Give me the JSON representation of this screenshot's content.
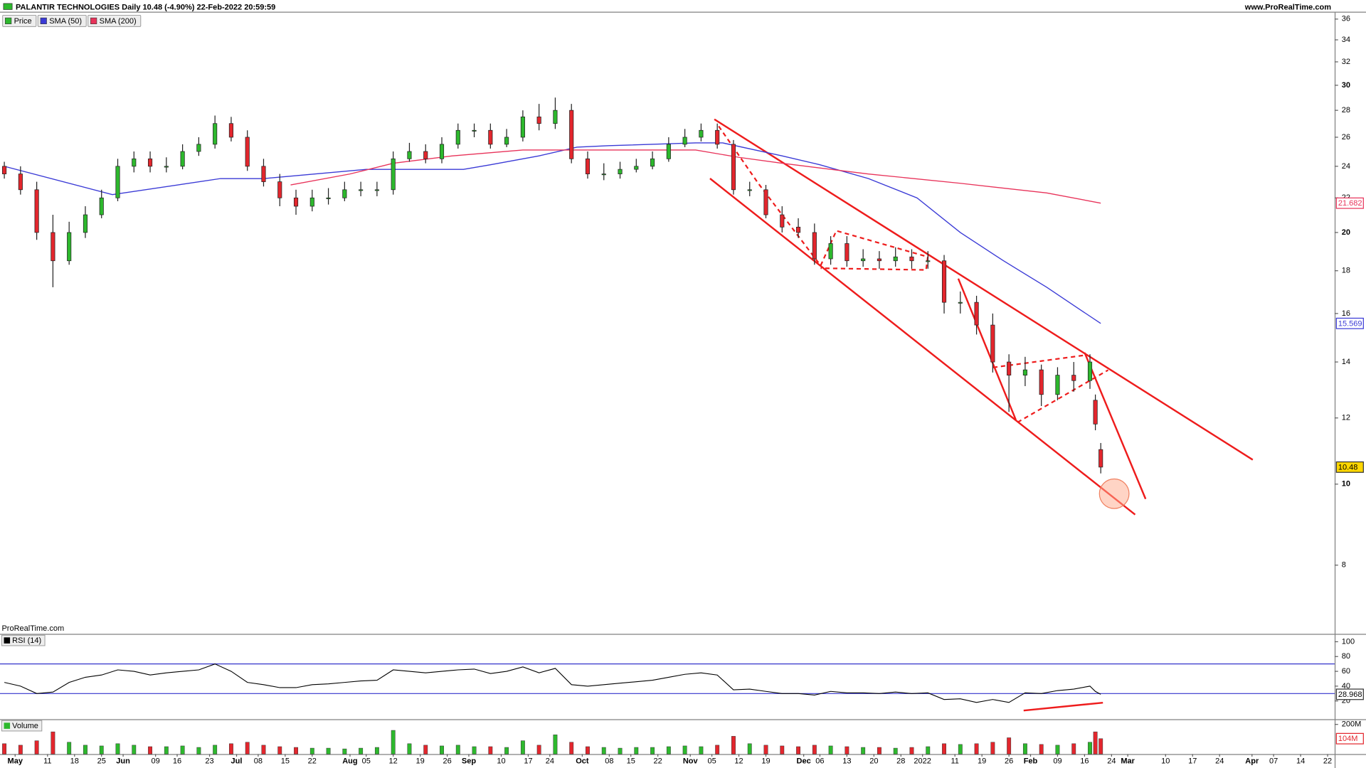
{
  "header": {
    "site": "www.ProRealTime.com",
    "watermark": "ProRealTime.com"
  },
  "chart_data": [
    {
      "type": "candlestick",
      "title": "PALANTIR TECHNOLOGIES Daily 10.48 (-4.90%) 22-Feb-2022 20:59:59",
      "name": "Price",
      "up_color": "#2db82d",
      "down_color": "#e3262d",
      "log": true,
      "grid": false,
      "x": [
        0,
        3,
        6,
        9,
        12,
        15,
        18,
        21,
        24,
        27,
        30,
        33,
        36,
        39,
        42,
        45,
        48,
        51,
        54,
        57,
        60,
        63,
        66,
        69,
        72,
        75,
        78,
        81,
        84,
        87,
        90,
        93,
        96,
        99,
        102,
        105,
        108,
        111,
        114,
        117,
        120,
        123,
        126,
        129,
        132,
        135,
        138,
        141,
        144,
        147,
        150,
        153,
        156,
        159,
        162,
        165,
        168,
        171,
        174,
        177,
        180,
        183,
        186,
        189,
        192,
        195,
        198,
        201,
        202,
        203
      ],
      "open": [
        24,
        23.5,
        22.5,
        20,
        18.5,
        20,
        21,
        22,
        24,
        24.5,
        24,
        24,
        25,
        25.5,
        27,
        26,
        24,
        23,
        22,
        21.5,
        22,
        22,
        22.5,
        22.5,
        22.5,
        24.5,
        25,
        24.5,
        25.5,
        26.5,
        26.5,
        25.5,
        26,
        27.5,
        27,
        28,
        24.5,
        23.5,
        23.5,
        23.8,
        24,
        24.5,
        25.5,
        26,
        26.5,
        25.5,
        22.5,
        22.5,
        21,
        20.3,
        20,
        18.6,
        19.4,
        18.5,
        18.6,
        18.5,
        18.7,
        18.5,
        18.5,
        16.5,
        16.5,
        15.5,
        14,
        13.5,
        13.7,
        12.8,
        13.5,
        13.3,
        12.6,
        11.0
      ],
      "high": [
        24.3,
        24,
        23,
        21,
        20.6,
        21.5,
        22.5,
        24.5,
        25,
        25,
        24.6,
        25.5,
        26,
        27.6,
        27.5,
        26.5,
        24.5,
        23.5,
        22.5,
        22.5,
        22.6,
        23,
        23,
        23,
        25,
        25.6,
        25.5,
        26,
        27,
        27,
        27,
        26.6,
        28,
        28.5,
        29,
        28.5,
        25,
        24.2,
        24.3,
        24.5,
        25,
        26,
        26.6,
        27,
        27,
        25.8,
        23,
        22.8,
        21.5,
        20.8,
        20.5,
        19.8,
        19.8,
        19.1,
        19,
        19.2,
        19.1,
        19,
        18.8,
        17,
        16.8,
        16,
        14.3,
        14.2,
        13.9,
        13.8,
        14,
        14.3,
        12.8,
        11.2
      ],
      "low": [
        23.2,
        22.2,
        19.6,
        17.2,
        18.3,
        19.7,
        20.8,
        21.8,
        23.6,
        23.6,
        23.6,
        23.8,
        24.7,
        25.2,
        25.7,
        23.7,
        22.7,
        21.5,
        21,
        21.2,
        21.6,
        21.8,
        22.1,
        22.1,
        22.2,
        24.3,
        24.2,
        24.2,
        25.2,
        26,
        25.2,
        25.3,
        25.7,
        26.5,
        26.6,
        24.2,
        23.2,
        23.1,
        23.2,
        23.6,
        23.8,
        24.3,
        25.3,
        25.7,
        25.2,
        22.2,
        22.1,
        20.8,
        20,
        19.7,
        18.3,
        18.3,
        18.2,
        18.2,
        18.1,
        18.2,
        18.1,
        18.1,
        16,
        16,
        15.1,
        13.6,
        12.2,
        13.1,
        12.4,
        12.6,
        12.9,
        13,
        11.6,
        10.3
      ],
      "close": [
        23.5,
        22.5,
        20,
        18.5,
        20,
        21,
        22,
        24,
        24.5,
        24,
        24,
        25,
        25.5,
        27,
        26,
        24,
        23,
        22,
        21.5,
        22,
        22,
        22.5,
        22.5,
        22.5,
        24.5,
        25,
        24.5,
        25.5,
        26.5,
        26.5,
        25.5,
        26,
        27.5,
        27,
        28,
        24.5,
        23.5,
        23.5,
        23.8,
        24,
        24.5,
        25.5,
        26,
        26.5,
        25.5,
        22.5,
        22.5,
        21,
        20.3,
        20,
        18.6,
        19.4,
        18.5,
        18.6,
        18.5,
        18.7,
        18.5,
        18.5,
        16.5,
        16.5,
        15.5,
        14,
        13.5,
        13.7,
        12.8,
        13.5,
        13.3,
        14,
        11.8,
        10.48
      ],
      "last_color": "#ffd700",
      "series": [
        {
          "name": "SMA (50)",
          "color": "#3a3ad6",
          "x": [
            0,
            20,
            40,
            48,
            67,
            85,
            90,
            99,
            106,
            112,
            128,
            133,
            144,
            151,
            160,
            169,
            177,
            185,
            193,
            199,
            203
          ],
          "values": [
            24.0,
            22.2,
            23.2,
            23.2,
            23.8,
            23.8,
            24.1,
            24.7,
            25.3,
            25.4,
            25.6,
            25.6,
            24.7,
            24.1,
            23.2,
            22.0,
            20,
            18.5,
            17.2,
            16.2,
            15.569
          ]
        },
        {
          "name": "SMA (200)",
          "color": "#e8335a",
          "x": [
            53,
            64,
            72,
            83,
            96,
            112,
            128,
            136,
            144,
            160,
            177,
            193,
            203
          ],
          "values": [
            22.8,
            23.5,
            24.2,
            24.7,
            25.1,
            25.1,
            25.1,
            24.6,
            24.2,
            23.5,
            22.9,
            22.3,
            21.682
          ]
        }
      ],
      "xlim": [
        -0.8,
        246.3
      ],
      "xticks": [
        {
          "value": 2,
          "label": "May"
        },
        {
          "value": 8,
          "label": "11"
        },
        {
          "value": 13,
          "label": "18"
        },
        {
          "value": 18,
          "label": "25"
        },
        {
          "value": 22,
          "label": "Jun"
        },
        {
          "value": 28,
          "label": "09"
        },
        {
          "value": 32,
          "label": "16"
        },
        {
          "value": 38,
          "label": "23"
        },
        {
          "value": 43,
          "label": "Jul"
        },
        {
          "value": 47,
          "label": "08"
        },
        {
          "value": 52,
          "label": "15"
        },
        {
          "value": 57,
          "label": "22"
        },
        {
          "value": 64,
          "label": "Aug"
        },
        {
          "value": 67,
          "label": "05"
        },
        {
          "value": 72,
          "label": "12"
        },
        {
          "value": 77,
          "label": "19"
        },
        {
          "value": 82,
          "label": "26"
        },
        {
          "value": 86,
          "label": "Sep"
        },
        {
          "value": 92,
          "label": "10"
        },
        {
          "value": 97,
          "label": "17"
        },
        {
          "value": 101,
          "label": "24"
        },
        {
          "value": 107,
          "label": "Oct"
        },
        {
          "value": 112,
          "label": "08"
        },
        {
          "value": 116,
          "label": "15"
        },
        {
          "value": 121,
          "label": "22"
        },
        {
          "value": 127,
          "label": "Nov"
        },
        {
          "value": 131,
          "label": "05"
        },
        {
          "value": 136,
          "label": "12"
        },
        {
          "value": 141,
          "label": "19"
        },
        {
          "value": 148,
          "label": "Dec"
        },
        {
          "value": 151,
          "label": "06"
        },
        {
          "value": 156,
          "label": "13"
        },
        {
          "value": 161,
          "label": "20"
        },
        {
          "value": 166,
          "label": "28"
        },
        {
          "value": 170,
          "label": "2022"
        },
        {
          "value": 176,
          "label": "11"
        },
        {
          "value": 181,
          "label": "19"
        },
        {
          "value": 186,
          "label": "26"
        },
        {
          "value": 190,
          "label": "Feb"
        },
        {
          "value": 195,
          "label": "09"
        },
        {
          "value": 200,
          "label": "16"
        },
        {
          "value": 205,
          "label": "24"
        },
        {
          "value": 208,
          "label": "Mar"
        },
        {
          "value": 215,
          "label": "10"
        },
        {
          "value": 220,
          "label": "17"
        },
        {
          "value": 225,
          "label": "24"
        },
        {
          "value": 231,
          "label": "Apr"
        },
        {
          "value": 235,
          "label": "07"
        },
        {
          "value": 240,
          "label": "14"
        },
        {
          "value": 245,
          "label": "22"
        }
      ],
      "ylim": [
        6.62,
        36.69
      ],
      "yticks": [
        8,
        10,
        12,
        14,
        16,
        18,
        20,
        22,
        24,
        26,
        28,
        30,
        32,
        34,
        36
      ]
    },
    {
      "type": "line",
      "name": "RSI (14)",
      "color": "#000000",
      "level_color": "#3333cc",
      "levels": [
        30,
        70
      ],
      "values": [
        45,
        40,
        30,
        32,
        45,
        52,
        55,
        62,
        60,
        55,
        58,
        60,
        62,
        70,
        60,
        45,
        42,
        38,
        38,
        42,
        43,
        45,
        47,
        48,
        62,
        60,
        58,
        60,
        62,
        63,
        57,
        60,
        66,
        58,
        64,
        42,
        40,
        42,
        44,
        46,
        48,
        52,
        56,
        58,
        55,
        35,
        36,
        33,
        30,
        30,
        28,
        33,
        31,
        31,
        30,
        32,
        30,
        31,
        22,
        23,
        18,
        22,
        18,
        31,
        30,
        34,
        36,
        40,
        33,
        28.968
      ],
      "ylim": [
        -4.7,
        109.4
      ],
      "yticks": [
        20,
        40,
        60,
        80,
        100
      ]
    },
    {
      "type": "bar",
      "name": "Volume",
      "last_color": "#e3262d",
      "values": [
        70,
        60,
        90,
        150,
        80,
        60,
        55,
        70,
        60,
        50,
        50,
        55,
        45,
        60,
        70,
        80,
        60,
        50,
        45,
        40,
        40,
        35,
        40,
        45,
        160,
        70,
        60,
        55,
        60,
        50,
        50,
        45,
        90,
        60,
        130,
        80,
        50,
        45,
        40,
        45,
        45,
        50,
        55,
        50,
        60,
        120,
        70,
        60,
        55,
        50,
        60,
        55,
        50,
        45,
        45,
        40,
        45,
        50,
        70,
        65,
        70,
        80,
        110,
        70,
        65,
        60,
        70,
        80,
        150,
        104
      ],
      "value_labels": [
        null,
        null,
        null,
        null,
        null,
        null,
        null,
        null,
        null,
        null,
        null,
        null,
        null,
        null,
        null,
        null,
        null,
        null,
        null,
        null,
        null,
        null,
        null,
        null,
        null,
        null,
        null,
        null,
        null,
        null,
        null,
        null,
        null,
        null,
        null,
        null,
        null,
        null,
        null,
        null,
        null,
        null,
        null,
        null,
        null,
        null,
        null,
        null,
        null,
        null,
        null,
        null,
        null,
        null,
        null,
        null,
        null,
        null,
        null,
        null,
        null,
        null,
        null,
        null,
        null,
        null,
        null,
        null,
        null,
        "104M"
      ],
      "ylim": [
        0,
        229
      ],
      "yticks": [
        {
          "value": 200,
          "label": "200M"
        }
      ]
    }
  ]
}
